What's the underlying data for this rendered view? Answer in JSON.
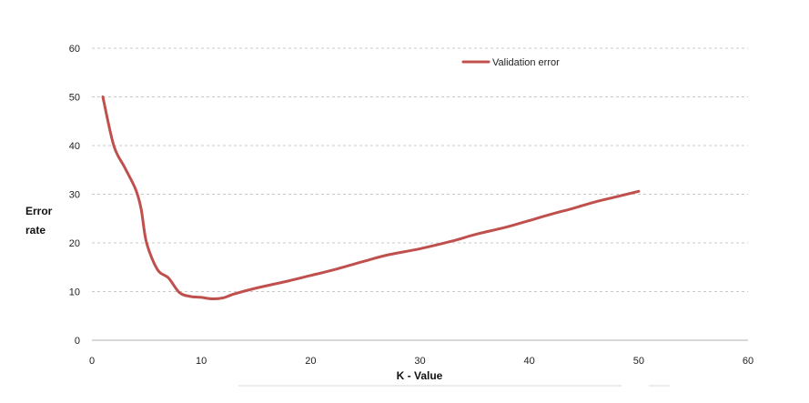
{
  "chart_data": {
    "type": "line",
    "title": "",
    "xlabel": "K - Value",
    "ylabel_lines": [
      "Error",
      "rate"
    ],
    "xlim": [
      0,
      60
    ],
    "ylim": [
      0,
      60
    ],
    "xticks": [
      0,
      10,
      20,
      30,
      40,
      50,
      60
    ],
    "yticks": [
      0,
      10,
      20,
      30,
      40,
      50,
      60
    ],
    "grid": "horizontal dashed",
    "legend_position": "top-center",
    "series": [
      {
        "name": "Validation error",
        "color": "#c0504d",
        "x": [
          1,
          2,
          3,
          4,
          4.5,
          5,
          6,
          7,
          8,
          9,
          10,
          11,
          12,
          13,
          15,
          18,
          20,
          22,
          25,
          27,
          30,
          33,
          35,
          38,
          40,
          42,
          44,
          46,
          48,
          50
        ],
        "y": [
          50,
          40,
          35.5,
          31,
          27,
          20,
          14.5,
          12.8,
          9.8,
          9,
          8.8,
          8.5,
          8.7,
          9.5,
          10.7,
          12.2,
          13.3,
          14.4,
          16.3,
          17.5,
          18.8,
          20.4,
          21.7,
          23.3,
          24.6,
          25.9,
          27.1,
          28.4,
          29.5,
          30.6
        ]
      }
    ]
  }
}
